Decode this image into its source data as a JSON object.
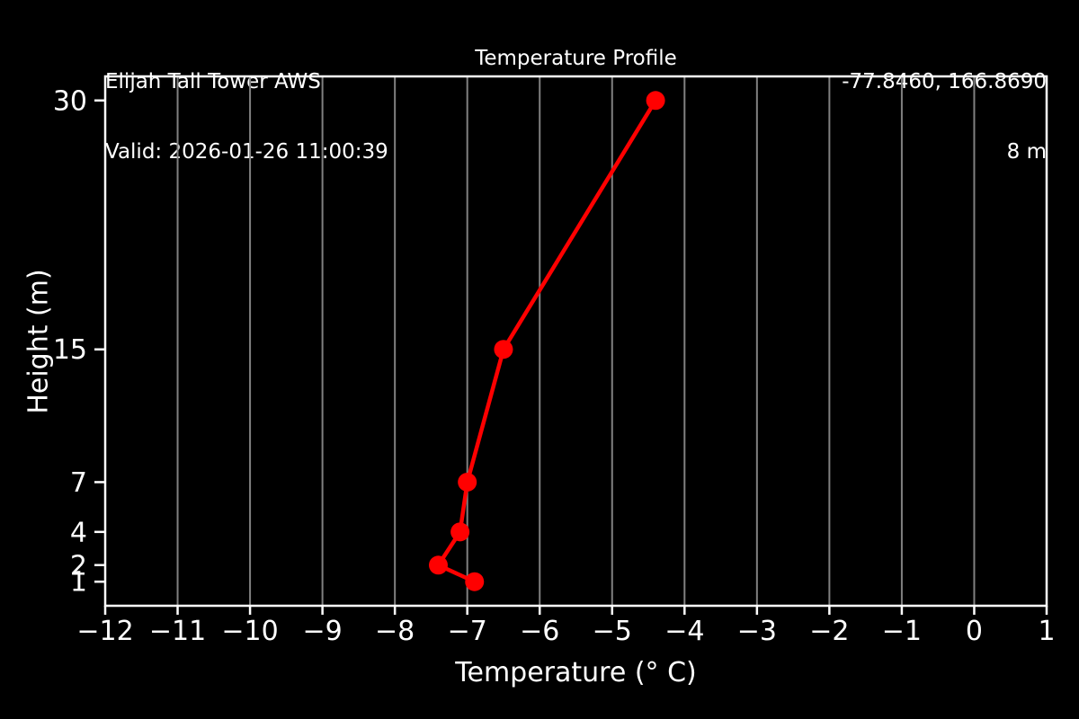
{
  "header": {
    "station": "Elijah Tall Tower AWS",
    "valid": "Valid: 2026-01-26 11:00:39",
    "coords": "-77.8460, 166.8690",
    "elevation": "8 m"
  },
  "chart_data": {
    "type": "line",
    "title": "Temperature Profile",
    "xlabel": "Temperature (° C)",
    "ylabel": "Height (m)",
    "xlim": [
      -12,
      1
    ],
    "ylim": [
      -0.45,
      31.45
    ],
    "xticks": [
      -12,
      -11,
      -10,
      -9,
      -8,
      -7,
      -6,
      -5,
      -4,
      -3,
      -2,
      -1,
      0,
      1
    ],
    "yticks": [
      1,
      2,
      4,
      7,
      15,
      30
    ],
    "grid": "vertical-only",
    "legend": "none",
    "series": [
      {
        "name": "temperature-profile",
        "color": "#ff0000",
        "points": [
          {
            "temp": -6.9,
            "height": 1
          },
          {
            "temp": -7.4,
            "height": 2
          },
          {
            "temp": -7.1,
            "height": 4
          },
          {
            "temp": -7.0,
            "height": 7
          },
          {
            "temp": -6.5,
            "height": 15
          },
          {
            "temp": -4.4,
            "height": 30
          }
        ]
      }
    ],
    "colors": {
      "background": "#000000",
      "foreground": "#ffffff",
      "grid": "#808080"
    }
  }
}
